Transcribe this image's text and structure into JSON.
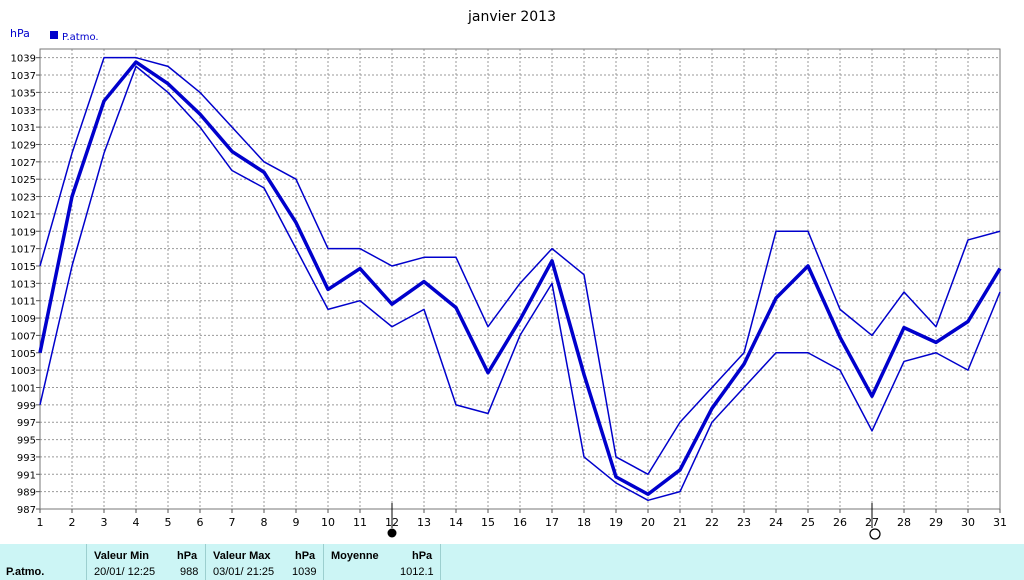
{
  "chart_data": {
    "type": "line",
    "title": "janvier 2013",
    "ylabel": "hPa",
    "legend": "P.atmo.",
    "x": [
      1,
      2,
      3,
      4,
      5,
      6,
      7,
      8,
      9,
      10,
      11,
      12,
      13,
      14,
      15,
      16,
      17,
      18,
      19,
      20,
      21,
      22,
      23,
      24,
      25,
      26,
      27,
      28,
      29,
      30,
      31
    ],
    "ylim": [
      987,
      1040
    ],
    "yticks": [
      987,
      989,
      991,
      993,
      995,
      997,
      999,
      1001,
      1003,
      1005,
      1007,
      1009,
      1011,
      1013,
      1015,
      1017,
      1019,
      1021,
      1023,
      1025,
      1027,
      1029,
      1031,
      1033,
      1035,
      1037,
      1039
    ],
    "grid": true,
    "legend_position": "top-left",
    "series": [
      {
        "role": "max",
        "color": "#0000cc",
        "width": 1.5,
        "values": [
          1015,
          1028,
          1039,
          1039,
          1038,
          1035,
          1031,
          1027,
          1025,
          1017,
          1017,
          1015,
          1016,
          1016,
          1008,
          1013,
          1017,
          1014,
          993,
          991,
          997,
          1001,
          1005,
          1019,
          1019,
          1010,
          1007,
          1012,
          1008,
          1018,
          1019
        ]
      },
      {
        "role": "mean",
        "color": "#0000cc",
        "width": 3.5,
        "values": [
          1005,
          1023,
          1034,
          1038.5,
          1036,
          1032.5,
          1028.2,
          1025.8,
          1020,
          1012.3,
          1014.7,
          1010.6,
          1013.2,
          1010.2,
          1002.7,
          1008.8,
          1015.6,
          1002.5,
          990.7,
          988.7,
          991.5,
          998.6,
          1003.7,
          1011.3,
          1015,
          1006.8,
          1000,
          1007.9,
          1006.2,
          1008.6,
          1014.7
        ]
      },
      {
        "role": "min",
        "color": "#0000cc",
        "width": 1.5,
        "values": [
          999,
          1015,
          1028,
          1038,
          1035,
          1031,
          1026,
          1024,
          1017,
          1010,
          1011,
          1008,
          1010,
          999,
          998,
          1007,
          1013,
          993,
          990,
          988,
          989,
          997,
          1001,
          1005,
          1005,
          1003,
          996,
          1004,
          1005,
          1003,
          1012
        ]
      }
    ],
    "moon_markers": [
      {
        "x": 12,
        "phase": "new-moon"
      },
      {
        "x": 27,
        "phase": "full-moon"
      }
    ]
  },
  "panel": {
    "row_label": "P.atmo.",
    "min_header": "Valeur Min",
    "min_unit": "hPa",
    "min_datetime": "20/01/  12:25",
    "min_value": "988",
    "max_header": "Valeur Max",
    "max_unit": "hPa",
    "max_datetime": "03/01/  21:25",
    "max_value": "1039",
    "avg_header": "Moyenne",
    "avg_unit": "hPa",
    "avg_value": "1012.1"
  },
  "colors": {
    "series": "#0000cc",
    "grid": "#999999",
    "panel_bg": "#ccf5f5"
  }
}
